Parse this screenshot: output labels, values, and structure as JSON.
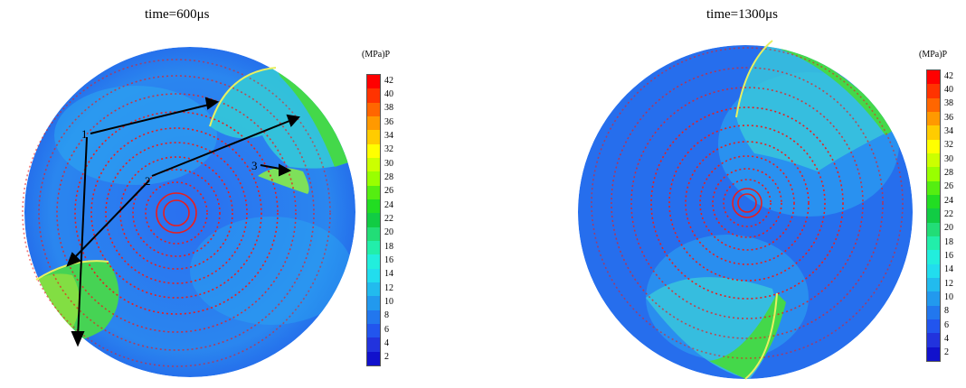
{
  "panels": [
    {
      "title": "time=600μs",
      "colorbar_title": "(MPa)P",
      "colorbar_ticks": [
        "42",
        "40",
        "38",
        "36",
        "34",
        "32",
        "30",
        "28",
        "26",
        "24",
        "22",
        "20",
        "18",
        "16",
        "14",
        "12",
        "10",
        "8",
        "6",
        "4",
        "2"
      ],
      "annotations": [
        "1",
        "2",
        "3"
      ]
    },
    {
      "title": "time=1300μs",
      "colorbar_title": "(MPa)P",
      "colorbar_ticks": [
        "42",
        "40",
        "38",
        "36",
        "34",
        "32",
        "30",
        "28",
        "26",
        "24",
        "22",
        "20",
        "18",
        "16",
        "14",
        "12",
        "10",
        "8",
        "6",
        "4",
        "2"
      ]
    }
  ],
  "colors": {
    "field_low": "#1f55e8",
    "field_mid": "#28a8f0",
    "field_high": "#3ad24a",
    "vector": "#e81e1e",
    "colorbar": [
      "#ff0000",
      "#ff3300",
      "#ff6600",
      "#ff9900",
      "#ffcc00",
      "#ffff00",
      "#ccff00",
      "#99ff00",
      "#55ee11",
      "#22dd22",
      "#11cc44",
      "#22dd77",
      "#22eeaa",
      "#22eedd",
      "#22ddee",
      "#22bbee",
      "#2299ee",
      "#2277ee",
      "#2255ee",
      "#2233dd",
      "#1111cc"
    ]
  }
}
